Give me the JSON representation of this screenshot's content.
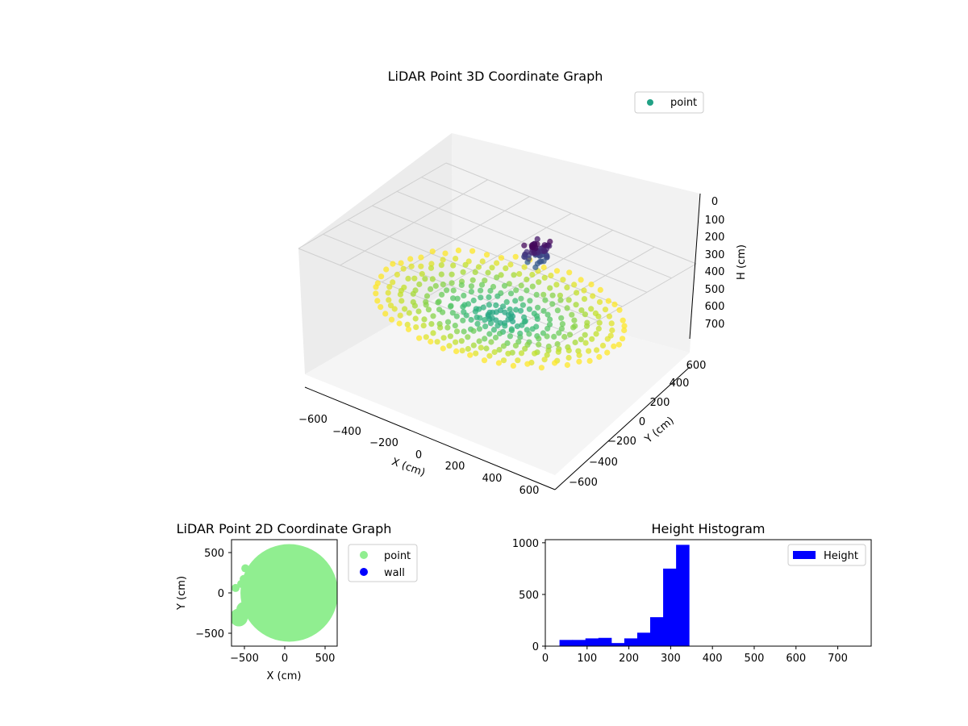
{
  "chart_data": [
    {
      "id": "scatter3d",
      "type": "scatter",
      "projection": "3d",
      "title": "LiDAR Point 3D Coordinate Graph",
      "xlabel": "X (cm)",
      "ylabel": "Y (cm)",
      "zlabel": "H (cm)",
      "x_ticks": [
        "−600",
        "−400",
        "−200",
        "0",
        "200",
        "400",
        "600"
      ],
      "y_ticks": [
        "600",
        "400",
        "200",
        "0",
        "−200",
        "−400",
        "−600"
      ],
      "z_ticks": [
        "0",
        "100",
        "200",
        "300",
        "400",
        "500",
        "600",
        "700"
      ],
      "xlim": [
        -700,
        700
      ],
      "ylim": [
        -700,
        700
      ],
      "zlim": [
        0,
        750
      ],
      "legend": [
        {
          "label": "point",
          "color": "#21a185"
        }
      ],
      "legend_position": "top-right",
      "colormap": "viridis",
      "description_of_data": "Bowl-shaped point cloud: outer ring radius ~600 cm at height ~300-350 cm rising toward the center; a cluster of dark purple points near (-100, 500) reaching heights ~150-250 cm."
    },
    {
      "id": "scatter2d",
      "type": "scatter",
      "title": "LiDAR Point 2D Coordinate Graph",
      "xlabel": "X (cm)",
      "ylabel": "Y (cm)",
      "x_ticks": [
        "−500",
        "0",
        "500"
      ],
      "y_ticks": [
        "500",
        "0",
        "−500"
      ],
      "xlim": [
        -650,
        650
      ],
      "ylim": [
        -650,
        650
      ],
      "legend": [
        {
          "label": "point",
          "color": "#90ee90"
        },
        {
          "label": "wall",
          "color": "#0000ff"
        }
      ],
      "legend_position": "outside-right"
    },
    {
      "id": "histogram",
      "type": "bar",
      "title": "Height Histogram",
      "xlabel": "",
      "ylabel": "",
      "x_ticks": [
        "0",
        "100",
        "200",
        "300",
        "400",
        "500",
        "600",
        "700"
      ],
      "y_ticks": [
        "1000",
        "500",
        "0"
      ],
      "xlim": [
        0,
        780
      ],
      "ylim": [
        0,
        1030
      ],
      "bin_edges": [
        34,
        65,
        96,
        127,
        158,
        189,
        220,
        251,
        282,
        313,
        344
      ],
      "values": [
        60,
        60,
        75,
        80,
        30,
        75,
        130,
        280,
        750,
        980
      ],
      "legend": [
        {
          "label": "Height",
          "color": "#0000ff"
        }
      ],
      "legend_position": "top-right",
      "bar_color": "#0000ff"
    }
  ]
}
